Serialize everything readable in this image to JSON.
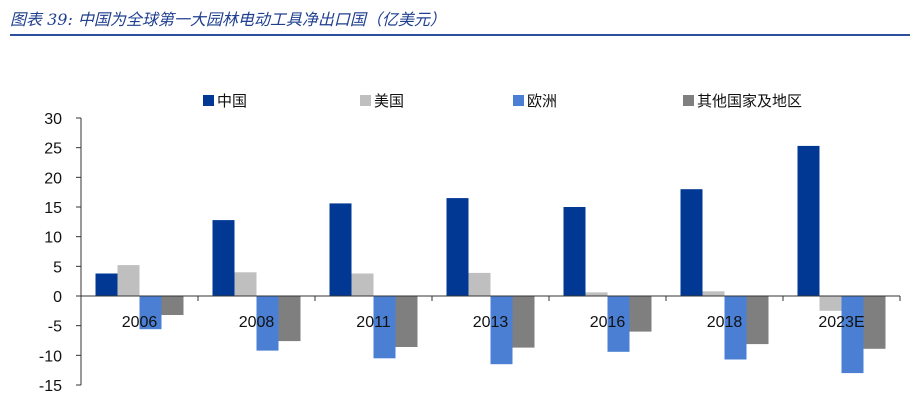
{
  "figure": {
    "title": "图表 39:  中国为全球第一大园林电动工具净出口国（亿美元）"
  },
  "colors": {
    "title": "#1f3f8f",
    "rule": "#2c4f9e"
  },
  "chart_data": {
    "type": "bar",
    "title": "",
    "xlabel": "",
    "ylabel": "",
    "ylim": [
      -15,
      30
    ],
    "yticks": [
      30,
      25,
      20,
      15,
      10,
      5,
      0,
      -5,
      -10,
      -15
    ],
    "grid": false,
    "legend_position": "top",
    "categories": [
      "2006",
      "2008",
      "2011",
      "2013",
      "2016",
      "2018",
      "2023E"
    ],
    "series": [
      {
        "name": "中国",
        "color": "#003893",
        "values": [
          3.8,
          12.8,
          15.6,
          16.5,
          15.0,
          18.0,
          25.3
        ]
      },
      {
        "name": "美国",
        "color": "#bfbfbf",
        "values": [
          5.2,
          4.0,
          3.8,
          3.9,
          0.6,
          0.8,
          -2.5
        ]
      },
      {
        "name": "欧洲",
        "color": "#4a7fd4",
        "values": [
          -5.6,
          -9.2,
          -10.5,
          -11.5,
          -9.4,
          -10.7,
          -13.0
        ]
      },
      {
        "name": "其他国家及地区",
        "color": "#7f7f7f",
        "values": [
          -3.2,
          -7.6,
          -8.6,
          -8.7,
          -6.0,
          -8.1,
          -8.9
        ]
      }
    ]
  }
}
